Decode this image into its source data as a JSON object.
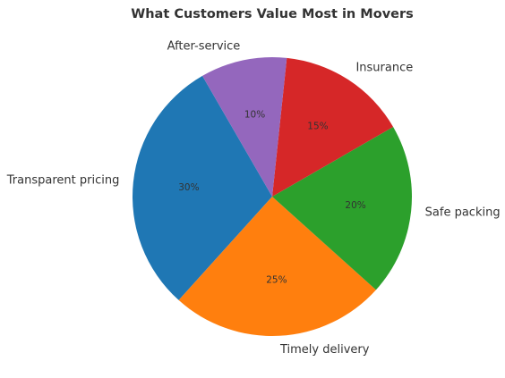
{
  "chart_data": {
    "type": "pie",
    "title": "What Customers Value Most in Movers",
    "categories": [
      "Transparent pricing",
      "Timely delivery",
      "Safe packing",
      "Insurance",
      "After-service"
    ],
    "values": [
      30,
      25,
      20,
      15,
      10
    ],
    "percent_labels": [
      "30%",
      "25%",
      "20%",
      "15%",
      "10%"
    ],
    "colors": [
      "#1f77b4",
      "#ff7f0e",
      "#2ca02c",
      "#d62728",
      "#9467bd"
    ],
    "start_angle_deg": 120,
    "direction": "counterclockwise",
    "legend": "none"
  }
}
